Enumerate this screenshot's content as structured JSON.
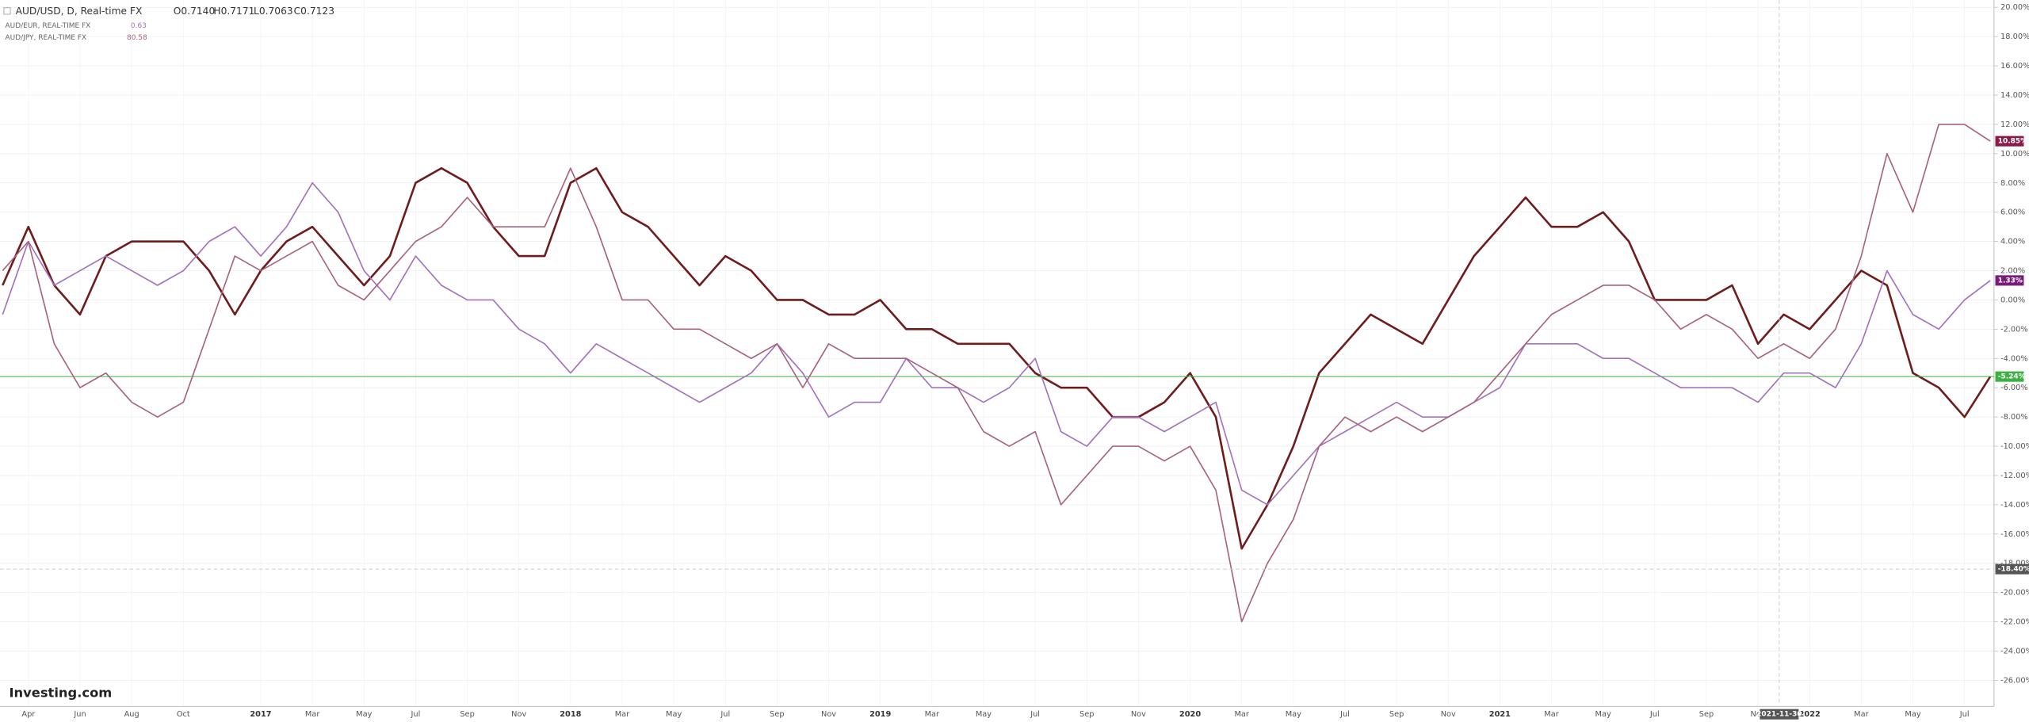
{
  "chart_data": {
    "type": "line",
    "header": {
      "symbol": "AUD/USD, D, Real-time FX",
      "ohlc": [
        "O0.7140",
        "H0.7171",
        "L0.7063",
        "C0.7123"
      ]
    },
    "compare": [
      {
        "name": "AUD/EUR, REAL-TIME FX",
        "quote": "0.63"
      },
      {
        "name": "AUD/JPY, REAL-TIME FX",
        "quote": "80.58"
      }
    ],
    "logo": "Investing.com",
    "categories": [
      null,
      "Apr",
      null,
      "Jun",
      null,
      "Aug",
      null,
      "Oct",
      null,
      null,
      "2017",
      null,
      "Mar",
      null,
      "May",
      null,
      "Jul",
      null,
      "Sep",
      null,
      "Nov",
      null,
      "2018",
      null,
      "Mar",
      null,
      "May",
      null,
      "Jul",
      null,
      "Sep",
      null,
      "Nov",
      null,
      "2019",
      null,
      "Mar",
      null,
      "May",
      null,
      "Jul",
      null,
      "Sep",
      null,
      "Nov",
      null,
      "2020",
      null,
      "Mar",
      null,
      "May",
      null,
      "Jul",
      null,
      "Sep",
      null,
      "Nov",
      null,
      "2021",
      null,
      "Mar",
      null,
      "May",
      null,
      "Jul",
      null,
      "Sep",
      null,
      "Nov",
      null,
      "2022",
      null,
      "Mar",
      null,
      "May",
      null,
      "Jul",
      null
    ],
    "series": [
      {
        "name": "AUD/USD",
        "color": "#6e1c1c",
        "badge_color": "#3cb043",
        "last_label": "-5.24%",
        "values": [
          1,
          5,
          1,
          -1,
          3,
          4,
          4,
          4,
          2,
          -1,
          2,
          4,
          5,
          3,
          1,
          3,
          8,
          9,
          8,
          5,
          3,
          3,
          8,
          9,
          6,
          5,
          3,
          1,
          3,
          2,
          0,
          0,
          -1,
          -1,
          0,
          -2,
          -2,
          -3,
          -3,
          -3,
          -5,
          -6,
          -6,
          -8,
          -8,
          -7,
          -5,
          -8,
          -17,
          -14,
          -10,
          -5,
          -3,
          -1,
          -2,
          -3,
          0,
          3,
          5,
          7,
          5,
          5,
          6,
          4,
          0,
          0,
          0,
          1,
          -3,
          -1,
          -2,
          0,
          2,
          1,
          -5,
          -6,
          -8,
          -5.24
        ]
      },
      {
        "name": "AUD/EUR",
        "color": "#a271bd",
        "badge_color": "#7b1a7b",
        "last_label": "1.33%",
        "values": [
          -1,
          4,
          1,
          2,
          3,
          2,
          1,
          2,
          4,
          5,
          3,
          5,
          8,
          6,
          2,
          0,
          3,
          1,
          0,
          0,
          -2,
          -3,
          -5,
          -3,
          -4,
          -5,
          -6,
          -7,
          -6,
          -5,
          -3,
          -5,
          -8,
          -7,
          -7,
          -4,
          -6,
          -6,
          -7,
          -6,
          -4,
          -9,
          -10,
          -8,
          -8,
          -9,
          -8,
          -7,
          -13,
          -14,
          -12,
          -10,
          -9,
          -8,
          -7,
          -8,
          -8,
          -7,
          -6,
          -3,
          -3,
          -3,
          -4,
          -4,
          -5,
          -6,
          -6,
          -6,
          -7,
          -5,
          -5,
          -6,
          -3,
          2,
          -1,
          -2,
          0,
          1.33
        ]
      },
      {
        "name": "AUD/JPY",
        "color": "#a8617f",
        "badge_color": "#8b1a4a",
        "last_label": "10.85%",
        "values": [
          2,
          4,
          -3,
          -6,
          -5,
          -7,
          -8,
          -7,
          -2,
          3,
          2,
          3,
          4,
          1,
          0,
          2,
          4,
          5,
          7,
          5,
          5,
          5,
          9,
          5,
          0,
          0,
          -2,
          -2,
          -3,
          -4,
          -3,
          -6,
          -3,
          -4,
          -4,
          -4,
          -5,
          -6,
          -9,
          -10,
          -9,
          -14,
          -12,
          -10,
          -10,
          -11,
          -10,
          -13,
          -22,
          -18,
          -15,
          -10,
          -8,
          -9,
          -8,
          -9,
          -8,
          -7,
          -5,
          -3,
          -1,
          0,
          1,
          1,
          0,
          -2,
          -1,
          -2,
          -4,
          -3,
          -4,
          -2,
          3,
          10,
          6,
          12,
          12,
          10.85
        ]
      }
    ],
    "crosshair": {
      "x_label": "2021-11-30",
      "y": -18.4,
      "y_label": "-18.40%"
    },
    "ylim": [
      -27.7,
      20.5
    ],
    "yticks": [
      {
        "value": 20,
        "label": "20.00%"
      },
      {
        "value": 18,
        "label": "18.00%"
      },
      {
        "value": 16,
        "label": "16.00%"
      },
      {
        "value": 14,
        "label": "14.00%"
      },
      {
        "value": 12,
        "label": "12.00%"
      },
      {
        "value": 10,
        "label": "10.00%"
      },
      {
        "value": 8,
        "label": "8.00%"
      },
      {
        "value": 6,
        "label": "6.00%"
      },
      {
        "value": 4,
        "label": "4.00%"
      },
      {
        "value": 2,
        "label": "2.00%"
      },
      {
        "value": 0,
        "label": "0.00%"
      },
      {
        "value": -2,
        "label": "-2.00%"
      },
      {
        "value": -4,
        "label": "-4.00%"
      },
      {
        "value": -6,
        "label": "-6.00%"
      },
      {
        "value": -8,
        "label": "-8.00%"
      },
      {
        "value": -10,
        "label": "-10.00%"
      },
      {
        "value": -12,
        "label": "-12.00%"
      },
      {
        "value": -14,
        "label": "-14.00%"
      },
      {
        "value": -16,
        "label": "-16.00%"
      },
      {
        "value": -18,
        "label": "-18.00%"
      },
      {
        "value": -20,
        "label": "-20.00%"
      },
      {
        "value": -22,
        "label": "-22.00%"
      },
      {
        "value": -24,
        "label": "-24.00%"
      },
      {
        "value": -26,
        "label": "-26.00%"
      }
    ],
    "grid": true
  }
}
